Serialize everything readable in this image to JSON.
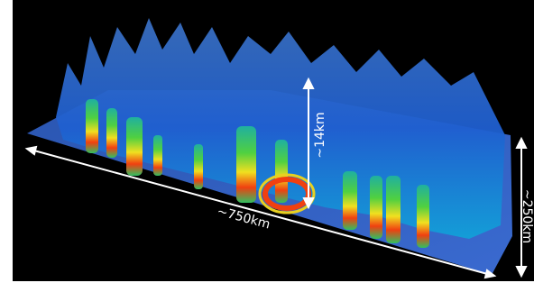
{
  "labels": {
    "height": "~14km",
    "length": "~750km",
    "width": "~250km"
  }
}
